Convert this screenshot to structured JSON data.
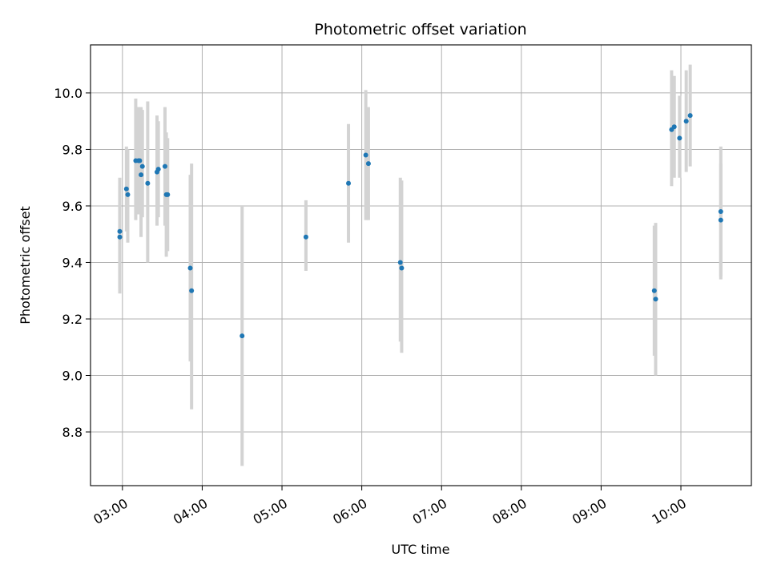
{
  "chart_data": {
    "type": "scatter",
    "title": "Photometric offset variation",
    "xlabel": "UTC time",
    "ylabel": "Photometric offset",
    "xlim": [
      "02:36",
      "10:53"
    ],
    "ylim": [
      8.61,
      10.17
    ],
    "x_ticks": [
      "03:00",
      "04:00",
      "05:00",
      "06:00",
      "07:00",
      "08:00",
      "09:00",
      "10:00"
    ],
    "y_ticks": [
      "8.8",
      "9.0",
      "9.2",
      "9.4",
      "9.6",
      "9.8",
      "10.0"
    ],
    "grid": true,
    "errorbar_color": "#d3d3d3",
    "marker_color": "#1f77b4",
    "points": [
      {
        "x": "02:58",
        "y": 9.49,
        "err_low": 9.31,
        "err_high": 9.67
      },
      {
        "x": "02:58",
        "y": 9.51,
        "err_low": 9.29,
        "err_high": 9.7
      },
      {
        "x": "03:03",
        "y": 9.66,
        "err_low": 9.51,
        "err_high": 9.81
      },
      {
        "x": "03:04",
        "y": 9.64,
        "err_low": 9.47,
        "err_high": 9.8
      },
      {
        "x": "03:10",
        "y": 9.76,
        "err_low": 9.55,
        "err_high": 9.98
      },
      {
        "x": "03:12",
        "y": 9.76,
        "err_low": 9.57,
        "err_high": 9.95
      },
      {
        "x": "03:13",
        "y": 9.76,
        "err_low": 9.6,
        "err_high": 9.94
      },
      {
        "x": "03:14",
        "y": 9.71,
        "err_low": 9.49,
        "err_high": 9.95
      },
      {
        "x": "03:15",
        "y": 9.74,
        "err_low": 9.56,
        "err_high": 9.94
      },
      {
        "x": "03:19",
        "y": 9.68,
        "err_low": 9.4,
        "err_high": 9.97
      },
      {
        "x": "03:26",
        "y": 9.72,
        "err_low": 9.53,
        "err_high": 9.92
      },
      {
        "x": "03:27",
        "y": 9.73,
        "err_low": 9.56,
        "err_high": 9.9
      },
      {
        "x": "03:32",
        "y": 9.74,
        "err_low": 9.53,
        "err_high": 9.95
      },
      {
        "x": "03:33",
        "y": 9.64,
        "err_low": 9.42,
        "err_high": 9.86
      },
      {
        "x": "03:34",
        "y": 9.64,
        "err_low": 9.44,
        "err_high": 9.84
      },
      {
        "x": "03:51",
        "y": 9.38,
        "err_low": 9.05,
        "err_high": 9.71
      },
      {
        "x": "03:52",
        "y": 9.3,
        "err_low": 8.88,
        "err_high": 9.75
      },
      {
        "x": "04:30",
        "y": 9.14,
        "err_low": 8.68,
        "err_high": 9.6
      },
      {
        "x": "05:18",
        "y": 9.49,
        "err_low": 9.37,
        "err_high": 9.62
      },
      {
        "x": "05:50",
        "y": 9.68,
        "err_low": 9.47,
        "err_high": 9.89
      },
      {
        "x": "06:03",
        "y": 9.78,
        "err_low": 9.55,
        "err_high": 10.01
      },
      {
        "x": "06:05",
        "y": 9.75,
        "err_low": 9.55,
        "err_high": 9.95
      },
      {
        "x": "06:29",
        "y": 9.4,
        "err_low": 9.12,
        "err_high": 9.7
      },
      {
        "x": "06:30",
        "y": 9.38,
        "err_low": 9.08,
        "err_high": 9.69
      },
      {
        "x": "09:40",
        "y": 9.3,
        "err_low": 9.07,
        "err_high": 9.53
      },
      {
        "x": "09:41",
        "y": 9.27,
        "err_low": 9.0,
        "err_high": 9.54
      },
      {
        "x": "09:53",
        "y": 9.87,
        "err_low": 9.67,
        "err_high": 10.08
      },
      {
        "x": "09:55",
        "y": 9.88,
        "err_low": 9.7,
        "err_high": 10.06
      },
      {
        "x": "09:59",
        "y": 9.84,
        "err_low": 9.7,
        "err_high": 9.99
      },
      {
        "x": "10:04",
        "y": 9.9,
        "err_low": 9.72,
        "err_high": 10.08
      },
      {
        "x": "10:07",
        "y": 9.92,
        "err_low": 9.74,
        "err_high": 10.1
      },
      {
        "x": "10:30",
        "y": 9.58,
        "err_low": 9.34,
        "err_high": 9.81
      },
      {
        "x": "10:30",
        "y": 9.55,
        "err_low": 9.35,
        "err_high": 9.75
      }
    ]
  }
}
